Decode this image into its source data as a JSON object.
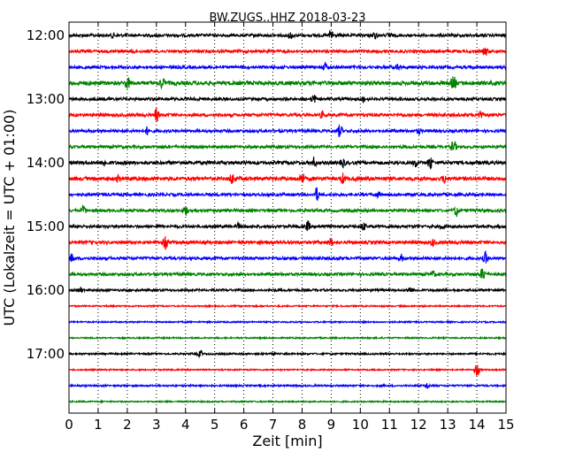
{
  "chart_data": {
    "type": "line",
    "title": "BW.ZUGS..HHZ 2018-03-23",
    "xlabel": "Zeit  [min]",
    "ylabel": "UTC (Lokalzeit = UTC + 01:00)",
    "xlim": [
      0,
      15
    ],
    "x_ticks": [
      "0",
      "1",
      "2",
      "3",
      "4",
      "5",
      "6",
      "7",
      "8",
      "9",
      "10",
      "11",
      "12",
      "13",
      "14",
      "15"
    ],
    "y_tick_labels": [
      "12:00",
      "13:00",
      "14:00",
      "15:00",
      "16:00",
      "17:00"
    ],
    "grid": "vertical dotted at every minute",
    "trace_colors": [
      "#000000",
      "#ff0000",
      "#0000ff",
      "#008000"
    ],
    "traces": [
      {
        "start": "12:00",
        "color": "#000000",
        "amplitude": 1.0,
        "spikes": [
          [
            1.5,
            0.5
          ],
          [
            7.6,
            0.8
          ],
          [
            9.0,
            1.5
          ],
          [
            10.5,
            0.6
          ],
          [
            11.0,
            0.5
          ]
        ]
      },
      {
        "start": "12:15",
        "color": "#ff0000",
        "amplitude": 1.0,
        "spikes": [
          [
            14.3,
            0.9
          ],
          [
            2.2,
            0.4
          ]
        ]
      },
      {
        "start": "12:30",
        "color": "#0000ff",
        "amplitude": 1.0,
        "spikes": [
          [
            8.8,
            0.9
          ],
          [
            11.3,
            0.7
          ]
        ]
      },
      {
        "start": "12:45",
        "color": "#008000",
        "amplitude": 1.4,
        "spikes": [
          [
            2.0,
            1.4
          ],
          [
            3.2,
            1.2
          ],
          [
            13.2,
            1.6
          ]
        ]
      },
      {
        "start": "13:00",
        "color": "#000000",
        "amplitude": 1.0,
        "spikes": [
          [
            8.4,
            1.0
          ],
          [
            10.1,
            0.6
          ]
        ]
      },
      {
        "start": "13:15",
        "color": "#ff0000",
        "amplitude": 1.1,
        "spikes": [
          [
            3.0,
            1.5
          ],
          [
            8.7,
            0.7
          ],
          [
            14.1,
            1.0
          ]
        ]
      },
      {
        "start": "13:30",
        "color": "#0000ff",
        "amplitude": 1.0,
        "spikes": [
          [
            2.7,
            0.9
          ],
          [
            9.3,
            1.5
          ],
          [
            12.0,
            0.5
          ]
        ]
      },
      {
        "start": "13:45",
        "color": "#008000",
        "amplitude": 1.0,
        "spikes": [
          [
            13.2,
            1.6
          ]
        ]
      },
      {
        "start": "14:00",
        "color": "#000000",
        "amplitude": 1.2,
        "spikes": [
          [
            1.2,
            0.7
          ],
          [
            8.4,
            1.0
          ],
          [
            9.4,
            1.0
          ],
          [
            11.9,
            0.8
          ],
          [
            12.4,
            1.5
          ]
        ]
      },
      {
        "start": "14:15",
        "color": "#ff0000",
        "amplitude": 1.3,
        "spikes": [
          [
            1.7,
            0.7
          ],
          [
            5.6,
            1.3
          ],
          [
            8.0,
            1.4
          ],
          [
            9.4,
            1.0
          ],
          [
            12.9,
            0.9
          ]
        ]
      },
      {
        "start": "14:30",
        "color": "#0000ff",
        "amplitude": 1.0,
        "spikes": [
          [
            8.5,
            1.6
          ],
          [
            10.6,
            0.5
          ]
        ]
      },
      {
        "start": "14:45",
        "color": "#008000",
        "amplitude": 1.0,
        "spikes": [
          [
            0.5,
            1.0
          ],
          [
            4.0,
            1.1
          ],
          [
            13.3,
            1.3
          ]
        ]
      },
      {
        "start": "15:00",
        "color": "#000000",
        "amplitude": 1.0,
        "spikes": [
          [
            5.8,
            0.6
          ],
          [
            8.2,
            1.1
          ],
          [
            10.1,
            0.9
          ],
          [
            12.8,
            0.5
          ]
        ]
      },
      {
        "start": "15:15",
        "color": "#ff0000",
        "amplitude": 1.1,
        "spikes": [
          [
            3.3,
            1.5
          ],
          [
            9.0,
            0.8
          ],
          [
            12.5,
            0.7
          ]
        ]
      },
      {
        "start": "15:30",
        "color": "#0000ff",
        "amplitude": 1.0,
        "spikes": [
          [
            0.1,
            0.9
          ],
          [
            11.4,
            0.8
          ],
          [
            14.3,
            1.4
          ]
        ]
      },
      {
        "start": "15:45",
        "color": "#008000",
        "amplitude": 1.0,
        "spikes": [
          [
            14.2,
            1.5
          ],
          [
            12.5,
            0.7
          ]
        ]
      },
      {
        "start": "16:00",
        "color": "#000000",
        "amplitude": 0.8,
        "spikes": [
          [
            0.4,
            0.6
          ],
          [
            11.7,
            0.8
          ]
        ]
      },
      {
        "start": "16:15",
        "color": "#ff0000",
        "amplitude": 0.5,
        "spikes": []
      },
      {
        "start": "16:30",
        "color": "#0000ff",
        "amplitude": 0.5,
        "spikes": []
      },
      {
        "start": "16:45",
        "color": "#008000",
        "amplitude": 0.5,
        "spikes": []
      },
      {
        "start": "17:00",
        "color": "#000000",
        "amplitude": 0.6,
        "spikes": [
          [
            4.5,
            0.7
          ],
          [
            7.0,
            0.4
          ]
        ]
      },
      {
        "start": "17:15",
        "color": "#ff0000",
        "amplitude": 0.5,
        "spikes": [
          [
            14.0,
            1.6
          ]
        ]
      },
      {
        "start": "17:30",
        "color": "#0000ff",
        "amplitude": 0.6,
        "spikes": [
          [
            12.3,
            0.7
          ]
        ]
      },
      {
        "start": "17:45",
        "color": "#008000",
        "amplitude": 0.5,
        "spikes": []
      }
    ]
  }
}
